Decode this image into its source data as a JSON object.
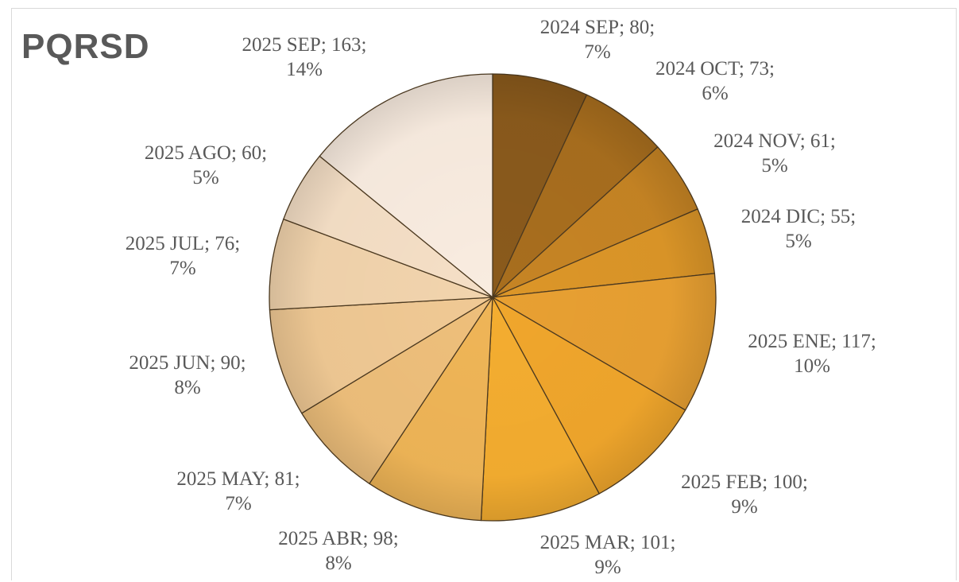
{
  "chart_data": {
    "type": "pie",
    "title": "PQRSD",
    "start_angle_deg": 0,
    "direction": "clockwise",
    "slices": [
      {
        "label": "2024 SEP",
        "value": 80,
        "percent_label": "7%",
        "text_line1": "2024 SEP; 80;",
        "color": "#8a5a1c"
      },
      {
        "label": "2024 OCT",
        "value": 73,
        "percent_label": "6%",
        "text_line1": "2024 OCT; 73;",
        "color": "#a86e1e"
      },
      {
        "label": "2024 NOV",
        "value": 61,
        "percent_label": "5%",
        "text_line1": "2024 NOV; 61;",
        "color": "#c68424"
      },
      {
        "label": "2024 DIC",
        "value": 55,
        "percent_label": "5%",
        "text_line1": "2024 DIC; 55;",
        "color": "#dc9628"
      },
      {
        "label": "2025 ENE",
        "value": 117,
        "percent_label": "10%",
        "text_line1": "2025 ENE; 117;",
        "color": "#e8a032"
      },
      {
        "label": "2025 FEB",
        "value": 100,
        "percent_label": "9%",
        "text_line1": "2025 FEB; 100;",
        "color": "#f0a62c"
      },
      {
        "label": "2025 MAR",
        "value": 101,
        "percent_label": "9%",
        "text_line1": "2025 MAR; 101;",
        "color": "#f4ad30"
      },
      {
        "label": "2025 ABR",
        "value": 98,
        "percent_label": "8%",
        "text_line1": "2025 ABR; 98;",
        "color": "#efb557"
      },
      {
        "label": "2025 MAY",
        "value": 81,
        "percent_label": "7%",
        "text_line1": "2025 MAY; 81;",
        "color": "#eebf7b"
      },
      {
        "label": "2025 JUN",
        "value": 90,
        "percent_label": "8%",
        "text_line1": "2025 JUN; 90;",
        "color": "#f0c994"
      },
      {
        "label": "2025 JUL",
        "value": 76,
        "percent_label": "7%",
        "text_line1": "2025 JUL; 76;",
        "color": "#f2d4ad"
      },
      {
        "label": "2025 AGO",
        "value": 60,
        "percent_label": "5%",
        "text_line1": "2025 AGO; 60;",
        "color": "#f5dfc6"
      },
      {
        "label": "2025 SEP",
        "value": 163,
        "percent_label": "14%",
        "text_line1": "2025 SEP; 163;",
        "color": "#f9ece0"
      }
    ]
  }
}
